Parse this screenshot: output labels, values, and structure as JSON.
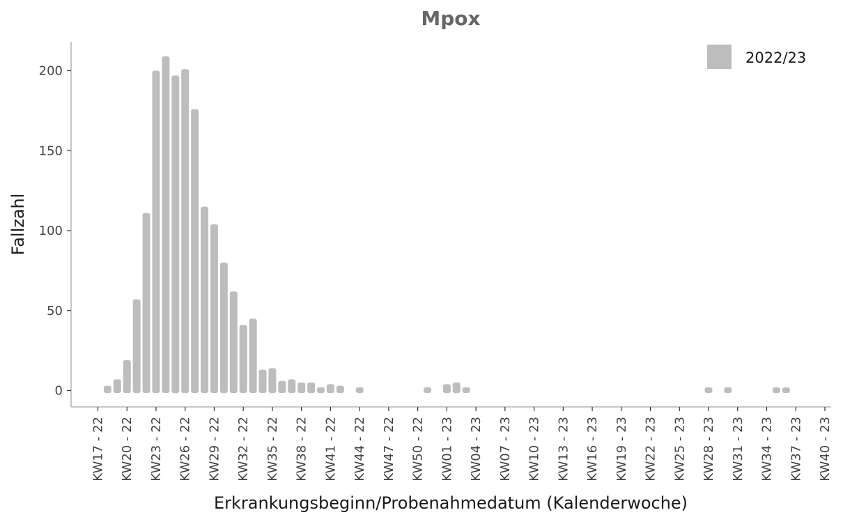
{
  "chart_data": {
    "type": "bar",
    "title": "Mpox",
    "xlabel": "Erkrankungsbeginn/Probenahmedatum (Kalenderwoche)",
    "ylabel": "Fallzahl",
    "ylim": [
      0,
      220
    ],
    "yticks": [
      0,
      50,
      100,
      150,
      200
    ],
    "xlim": [
      "KW17 - 22",
      "KW40 - 23"
    ],
    "xticks": [
      "KW17 - 22",
      "KW20 - 22",
      "KW23 - 22",
      "KW26 - 22",
      "KW29 - 22",
      "KW32 - 22",
      "KW35 - 22",
      "KW38 - 22",
      "KW41 - 22",
      "KW44 - 22",
      "KW47 - 22",
      "KW50 - 22",
      "KW01 - 23",
      "KW04 - 23",
      "KW07 - 23",
      "KW10 - 23",
      "KW13 - 23",
      "KW16 - 23",
      "KW19 - 23",
      "KW22 - 23",
      "KW25 - 23",
      "KW28 - 23",
      "KW31 - 23",
      "KW34 - 23",
      "KW37 - 23",
      "KW40 - 23"
    ],
    "legend": {
      "position": "top-right",
      "entries": [
        {
          "name": "2022/23",
          "color": "#bdbdbd"
        }
      ]
    },
    "grid": false,
    "series": [
      {
        "name": "2022/23",
        "color": "#bdbdbd",
        "points": [
          {
            "week": "KW18 - 22",
            "value": 3
          },
          {
            "week": "KW19 - 22",
            "value": 7
          },
          {
            "week": "KW20 - 22",
            "value": 19
          },
          {
            "week": "KW21 - 22",
            "value": 57
          },
          {
            "week": "KW22 - 22",
            "value": 111
          },
          {
            "week": "KW23 - 22",
            "value": 200
          },
          {
            "week": "KW24 - 22",
            "value": 209
          },
          {
            "week": "KW25 - 22",
            "value": 197
          },
          {
            "week": "KW26 - 22",
            "value": 201
          },
          {
            "week": "KW27 - 22",
            "value": 176
          },
          {
            "week": "KW28 - 22",
            "value": 115
          },
          {
            "week": "KW29 - 22",
            "value": 104
          },
          {
            "week": "KW30 - 22",
            "value": 80
          },
          {
            "week": "KW31 - 22",
            "value": 62
          },
          {
            "week": "KW32 - 22",
            "value": 41
          },
          {
            "week": "KW33 - 22",
            "value": 45
          },
          {
            "week": "KW34 - 22",
            "value": 13
          },
          {
            "week": "KW35 - 22",
            "value": 14
          },
          {
            "week": "KW36 - 22",
            "value": 6
          },
          {
            "week": "KW37 - 22",
            "value": 7
          },
          {
            "week": "KW38 - 22",
            "value": 5
          },
          {
            "week": "KW39 - 22",
            "value": 5
          },
          {
            "week": "KW40 - 22",
            "value": 2
          },
          {
            "week": "KW41 - 22",
            "value": 4
          },
          {
            "week": "KW42 - 22",
            "value": 3
          },
          {
            "week": "KW44 - 22",
            "value": 2
          },
          {
            "week": "KW51 - 22",
            "value": 2
          },
          {
            "week": "KW01 - 23",
            "value": 4
          },
          {
            "week": "KW02 - 23",
            "value": 5
          },
          {
            "week": "KW03 - 23",
            "value": 2
          },
          {
            "week": "KW28 - 23",
            "value": 1
          },
          {
            "week": "KW30 - 23",
            "value": 2
          },
          {
            "week": "KW35 - 23",
            "value": 1
          },
          {
            "week": "KW36 - 23",
            "value": 1
          }
        ]
      }
    ]
  }
}
